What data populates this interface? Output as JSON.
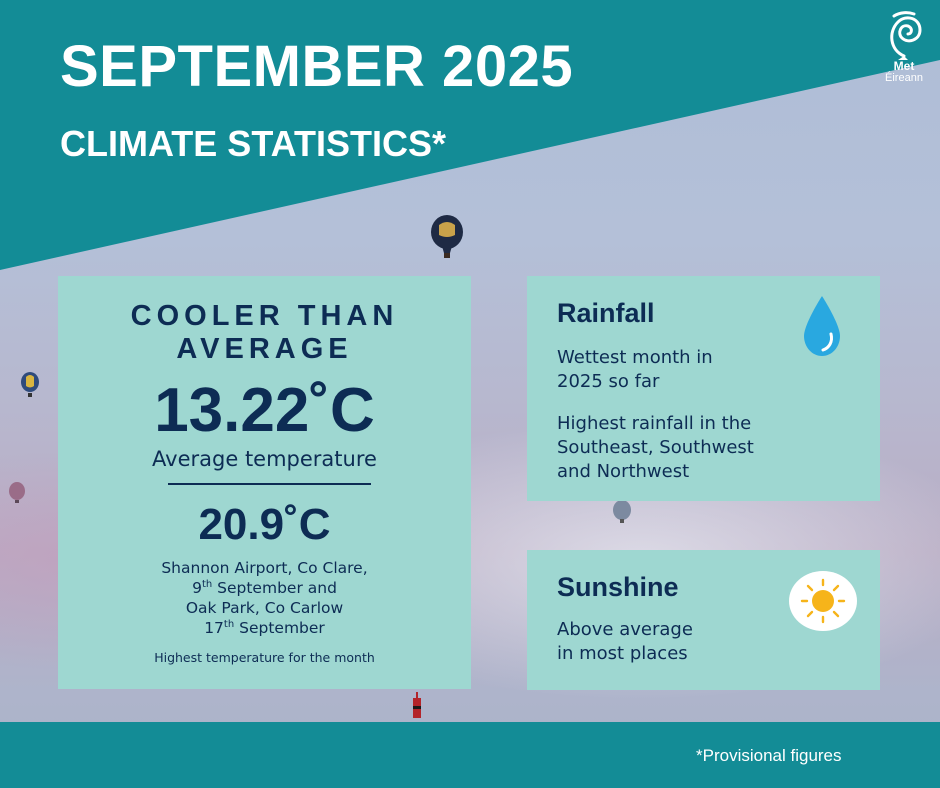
{
  "header": {
    "title": "SEPTEMBER 2025",
    "subtitle": "CLIMATE STATISTICS*"
  },
  "logo": {
    "icon": "met-eireann-swirl-icon",
    "word1": "Met",
    "word2": "Éireann"
  },
  "temperature_card": {
    "headline_line1": "COOLER THAN",
    "headline_line2": "AVERAGE",
    "average_value": "13.22˚C",
    "average_label": "Average temperature",
    "highest_value": "20.9˚C",
    "location1": "Shannon Airport, Co Clare,",
    "date1_day": "9",
    "date1_suffix": "th",
    "date1_rest": " September and",
    "location2": "Oak Park, Co Carlow",
    "date2_day": "17",
    "date2_suffix": "th",
    "date2_rest": " September",
    "highest_label": "Highest temperature for the month"
  },
  "rainfall_card": {
    "title": "Rainfall",
    "icon": "raindrop-icon",
    "line1": "Wettest month in",
    "line2": "2025 so far",
    "line3": "Highest rainfall in the",
    "line4": "Southeast, Southwest",
    "line5": "and Northwest"
  },
  "sunshine_card": {
    "title": "Sunshine",
    "icon": "sun-icon",
    "line1": "Above average",
    "line2": "in most places"
  },
  "footer": {
    "note": "*Provisional figures"
  },
  "colors": {
    "teal": "#138c96",
    "card": "#9ed7d1",
    "navy": "#0d2c54",
    "drop": "#29a8e0",
    "sun": "#f6b41a"
  }
}
